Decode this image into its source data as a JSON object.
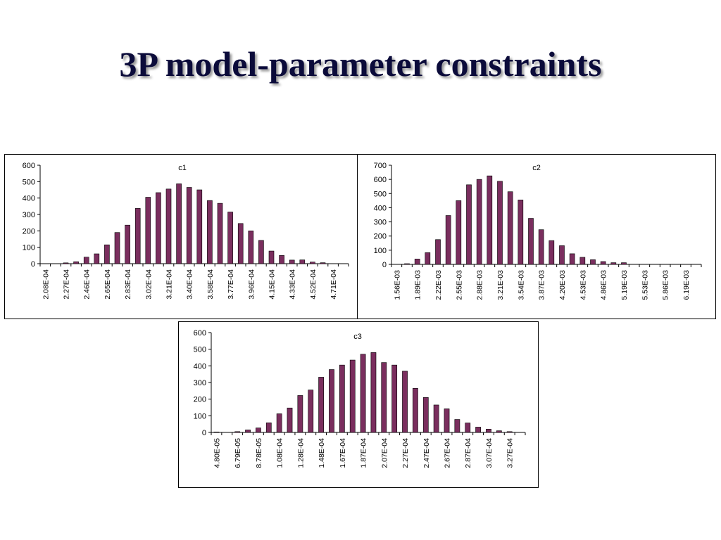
{
  "title": "3P model-parameter constraints",
  "colors": {
    "bar": "#7a2e5e",
    "bar_stroke": "#000000",
    "title": "#0b0b3a"
  },
  "chart_data": [
    {
      "type": "bar",
      "title": "c1",
      "ylim": [
        0,
        600
      ],
      "yticks": [
        "0",
        "100",
        "200",
        "300",
        "400",
        "500",
        "600"
      ],
      "categories": [
        "",
        "",
        "",
        "",
        "",
        "",
        "",
        "",
        "",
        "",
        "",
        "",
        "",
        "",
        "",
        "",
        "",
        "",
        "",
        "",
        "",
        "",
        "",
        "",
        "",
        "",
        "",
        "",
        "",
        ""
      ],
      "tick_labels": [
        "2.08E-04",
        "2.27E-04",
        "2.46E-04",
        "2.65E-04",
        "2.83E-04",
        "3.02E-04",
        "3.21E-04",
        "3.40E-04",
        "3.58E-04",
        "3.77E-04",
        "3.96E-04",
        "4.15E-04",
        "4.33E-04",
        "4.52E-04",
        "4.71E-04"
      ],
      "values": [
        0,
        0,
        5,
        12,
        40,
        60,
        115,
        190,
        235,
        337,
        405,
        433,
        455,
        487,
        465,
        450,
        385,
        368,
        315,
        245,
        200,
        142,
        77,
        50,
        22,
        23,
        10,
        6,
        0,
        0
      ]
    },
    {
      "type": "bar",
      "title": "c2",
      "ylim": [
        0,
        700
      ],
      "yticks": [
        "0",
        "100",
        "200",
        "300",
        "400",
        "500",
        "600",
        "700"
      ],
      "categories": [
        "",
        "",
        "",
        "",
        "",
        "",
        "",
        "",
        "",
        "",
        "",
        "",
        "",
        "",
        "",
        "",
        "",
        "",
        "",
        "",
        "",
        "",
        "",
        "",
        "",
        "",
        "",
        "",
        "",
        ""
      ],
      "tick_labels": [
        "1.56E-03",
        "1.89E-03",
        "2.22E-03",
        "2.55E-03",
        "2.88E-03",
        "3.21E-03",
        "3.54E-03",
        "3.87E-03",
        "4.20E-03",
        "4.53E-03",
        "4.86E-03",
        "5.19E-03",
        "5.53E-03",
        "5.86E-03",
        "6.19E-03"
      ],
      "values": [
        0,
        5,
        38,
        83,
        175,
        345,
        450,
        562,
        600,
        625,
        587,
        513,
        455,
        325,
        245,
        168,
        132,
        75,
        50,
        33,
        20,
        12,
        12,
        0,
        0,
        0,
        0,
        0,
        0,
        0
      ]
    },
    {
      "type": "bar",
      "title": "c3",
      "ylim": [
        0,
        600
      ],
      "yticks": [
        "0",
        "100",
        "200",
        "300",
        "400",
        "500",
        "600"
      ],
      "categories": [
        "",
        "",
        "",
        "",
        "",
        "",
        "",
        "",
        "",
        "",
        "",
        "",
        "",
        "",
        "",
        "",
        "",
        "",
        "",
        "",
        "",
        "",
        "",
        "",
        "",
        "",
        "",
        "",
        "",
        ""
      ],
      "tick_labels": [
        "4.80E-05",
        "6.79E-05",
        "8.78E-05",
        "1.08E-04",
        "1.28E-04",
        "1.48E-04",
        "1.67E-04",
        "1.87E-04",
        "2.07E-04",
        "2.27E-04",
        "2.47E-04",
        "2.67E-04",
        "2.87E-04",
        "3.07E-04",
        "3.27E-04"
      ],
      "values": [
        3,
        0,
        5,
        15,
        27,
        58,
        112,
        147,
        222,
        255,
        332,
        378,
        405,
        435,
        470,
        480,
        420,
        405,
        368,
        265,
        210,
        165,
        142,
        78,
        57,
        32,
        20,
        10,
        5,
        0
      ]
    }
  ]
}
